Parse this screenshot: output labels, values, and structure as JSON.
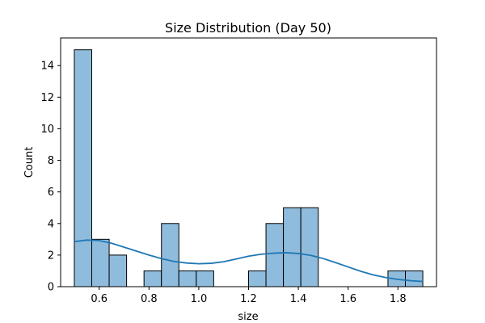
{
  "chart_data": {
    "type": "bar",
    "title": "Size Distribution (Day 50)",
    "xlabel": "size",
    "ylabel": "Count",
    "xlim": [
      0.445,
      1.955
    ],
    "ylim": [
      0,
      15.75
    ],
    "xticks": [
      0.6,
      0.8,
      1.0,
      1.2,
      1.4,
      1.6,
      1.8
    ],
    "xtick_labels": [
      "0.6",
      "0.8",
      "1.0",
      "1.2",
      "1.4",
      "1.6",
      "1.8"
    ],
    "yticks": [
      0,
      2,
      4,
      6,
      8,
      10,
      12,
      14
    ],
    "ytick_labels": [
      "0",
      "2",
      "4",
      "6",
      "8",
      "10",
      "12",
      "14"
    ],
    "bin_edges": [
      0.5,
      0.57,
      0.64,
      0.71,
      0.78,
      0.85,
      0.92,
      0.99,
      1.06,
      1.13,
      1.2,
      1.27,
      1.34,
      1.41,
      1.48,
      1.55,
      1.62,
      1.69,
      1.76,
      1.83,
      1.9
    ],
    "counts": [
      15,
      3,
      2,
      0,
      1,
      4,
      1,
      1,
      0,
      0,
      1,
      4,
      5,
      5,
      0,
      0,
      0,
      0,
      1,
      1
    ],
    "kde": {
      "x": [
        0.5,
        0.55,
        0.6,
        0.65,
        0.7,
        0.75,
        0.8,
        0.85,
        0.9,
        0.95,
        1.0,
        1.05,
        1.1,
        1.15,
        1.2,
        1.25,
        1.3,
        1.35,
        1.4,
        1.45,
        1.5,
        1.55,
        1.6,
        1.65,
        1.7,
        1.75,
        1.8,
        1.85,
        1.9
      ],
      "y": [
        2.85,
        2.95,
        2.92,
        2.75,
        2.5,
        2.25,
        2.0,
        1.78,
        1.6,
        1.5,
        1.45,
        1.48,
        1.58,
        1.75,
        1.93,
        2.05,
        2.12,
        2.15,
        2.1,
        1.98,
        1.78,
        1.52,
        1.25,
        0.98,
        0.75,
        0.58,
        0.46,
        0.38,
        0.33
      ]
    },
    "grid": false,
    "colors": {
      "bar_fill": "#8fbcdc",
      "bar_edge": "#000000",
      "kde_line": "#1f77b4"
    }
  }
}
